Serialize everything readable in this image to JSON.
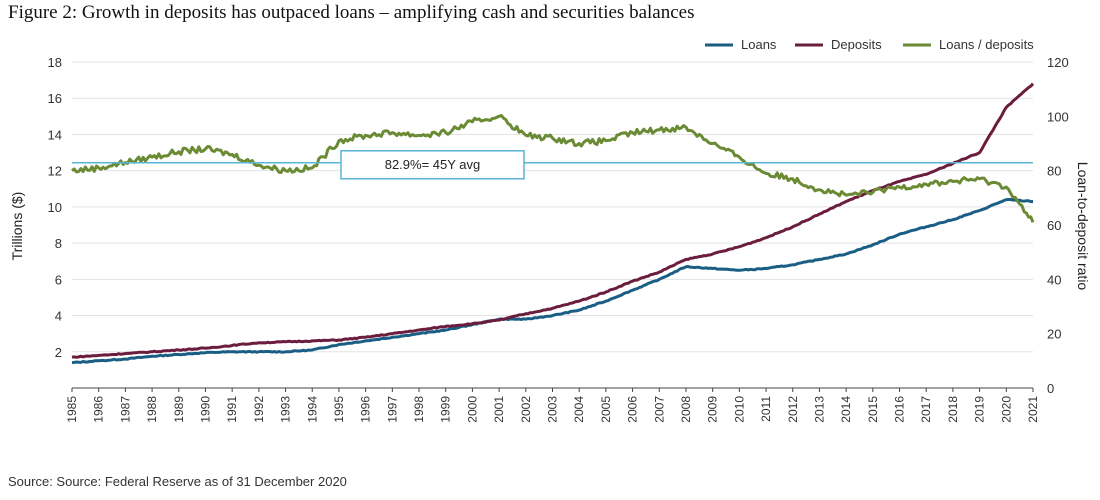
{
  "title": "Figure 2: Growth in deposits has outpaced loans – amplifying cash and securities balances",
  "source": "Source: Source: Federal Reserve as of 31 December 2020",
  "chart_data": {
    "type": "line",
    "title": "Figure 2: Growth in deposits has outpaced loans – amplifying cash and securities balances",
    "ylabel_left": "Trillions ($)",
    "ylabel_right": "Loan-to-deposit ratio",
    "ylim_left": [
      0,
      18
    ],
    "ylim_right": [
      0,
      120
    ],
    "yticks_left": [
      2,
      4,
      6,
      8,
      10,
      12,
      14,
      16,
      18
    ],
    "yticks_right": [
      0,
      20,
      40,
      60,
      80,
      100,
      120
    ],
    "x": [
      1985,
      1986,
      1987,
      1988,
      1989,
      1990,
      1991,
      1992,
      1993,
      1994,
      1995,
      1996,
      1997,
      1998,
      1999,
      2000,
      2001,
      2002,
      2003,
      2004,
      2005,
      2006,
      2007,
      2008,
      2009,
      2010,
      2011,
      2012,
      2013,
      2014,
      2015,
      2016,
      2017,
      2018,
      2019,
      2020,
      2021
    ],
    "xtick_labels": [
      "1985",
      "1986",
      "1987",
      "1988",
      "1989",
      "1990",
      "1991",
      "1992",
      "1993",
      "1994",
      "1995",
      "1996",
      "1997",
      "1998",
      "1999",
      "2000",
      "2001",
      "2002",
      "2003",
      "2004",
      "2005",
      "2006",
      "2007",
      "2008",
      "2009",
      "2010",
      "2011",
      "2012",
      "2013",
      "2014",
      "2015",
      "2016",
      "2017",
      "2018",
      "2019",
      "2020",
      "2021"
    ],
    "series": [
      {
        "name": "Loans",
        "axis": "left",
        "color": "#1b5e85",
        "values": [
          1.4,
          1.5,
          1.6,
          1.75,
          1.85,
          1.95,
          2.0,
          2.0,
          2.0,
          2.1,
          2.4,
          2.6,
          2.8,
          3.0,
          3.2,
          3.5,
          3.8,
          3.8,
          4.0,
          4.3,
          4.8,
          5.4,
          6.0,
          6.7,
          6.6,
          6.5,
          6.6,
          6.8,
          7.1,
          7.4,
          7.9,
          8.5,
          8.9,
          9.3,
          9.8,
          10.4,
          10.3
        ]
      },
      {
        "name": "Deposits",
        "axis": "left",
        "color": "#6b1d3d",
        "values": [
          1.7,
          1.8,
          1.9,
          2.0,
          2.1,
          2.2,
          2.35,
          2.5,
          2.55,
          2.6,
          2.65,
          2.8,
          3.0,
          3.2,
          3.4,
          3.55,
          3.75,
          4.1,
          4.4,
          4.8,
          5.3,
          5.9,
          6.4,
          7.1,
          7.4,
          7.8,
          8.3,
          8.9,
          9.6,
          10.3,
          10.9,
          11.4,
          11.8,
          12.4,
          13.0,
          15.5,
          16.8
        ]
      },
      {
        "name": "Loans / deposits",
        "axis": "right",
        "color": "#6a8a34",
        "values": [
          80,
          81,
          83,
          85,
          87,
          88,
          86,
          82,
          80,
          81,
          91,
          93,
          94,
          93,
          94,
          98,
          100,
          93,
          92,
          90,
          91,
          94,
          95,
          96,
          90,
          85,
          79,
          77,
          73,
          71,
          72,
          74,
          75,
          76,
          77,
          74,
          61
        ]
      }
    ],
    "reference_line": {
      "value": 82.9,
      "axis": "right",
      "label": "82.9%= 45Y avg",
      "color": "#5ab4d6"
    },
    "legend_position": "top-right",
    "grid": true
  }
}
